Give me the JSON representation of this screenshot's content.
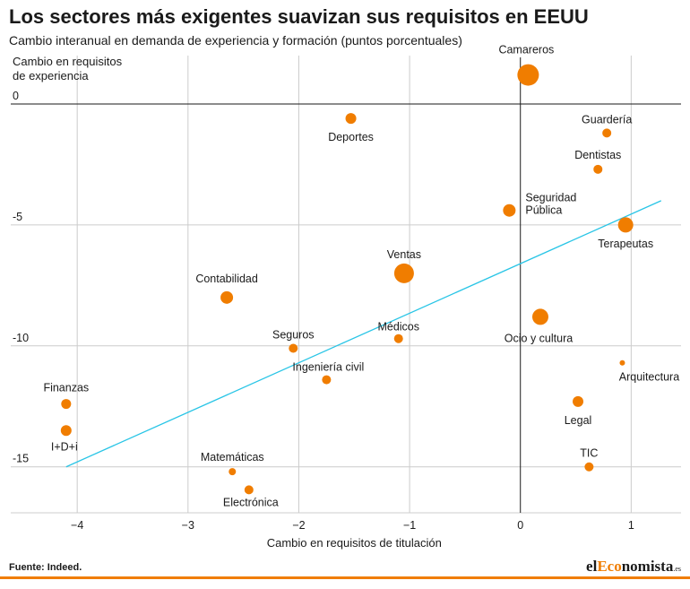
{
  "header": {
    "title": "Los sectores más exigentes suavizan sus requisitos en EEUU",
    "subtitle": "Cambio interanual en demanda de experiencia y formación (puntos porcentuales)"
  },
  "footer": {
    "source": "Fuente: Indeed.",
    "brand_pre": "el",
    "brand_accent": "Eco",
    "brand_post": "nomista",
    "brand_suffix": ".es"
  },
  "colors": {
    "points": "#f07d00",
    "trend": "#29c5e6",
    "axis": "#1a1a1a",
    "grid": "#cccccc"
  },
  "chart_data": {
    "type": "scatter",
    "title": "Los sectores más exigentes suavizan sus requisitos en EEUU",
    "subtitle": "Cambio interanual en demanda de experiencia y formación (puntos porcentuales)",
    "xlabel": "Cambio en requisitos de titulación",
    "ylabel_lines": [
      "Cambio en requisitos",
      "de experiencia"
    ],
    "xlim": [
      -4.6,
      1.45
    ],
    "ylim": [
      -16.9,
      2.0
    ],
    "x_ticks": [
      -4,
      -3,
      -2,
      -1,
      0,
      1
    ],
    "y_ticks": [
      0,
      -5,
      -10,
      -15
    ],
    "grid": true,
    "points": [
      {
        "label": "Camareros",
        "x": 0.07,
        "y": 1.2,
        "size": 12
      },
      {
        "label": "Deportes",
        "x": -1.53,
        "y": -0.6,
        "size": 6
      },
      {
        "label": "Guardería",
        "x": 0.78,
        "y": -1.2,
        "size": 5
      },
      {
        "label": "Dentistas",
        "x": 0.7,
        "y": -2.7,
        "size": 5
      },
      {
        "label": "Seguridad Pública",
        "x": -0.1,
        "y": -4.4,
        "size": 7
      },
      {
        "label": "Terapeutas",
        "x": 0.95,
        "y": -5.0,
        "size": 8.5
      },
      {
        "label": "Contabilidad",
        "x": -2.65,
        "y": -8.0,
        "size": 7
      },
      {
        "label": "Ventas",
        "x": -1.05,
        "y": -7.0,
        "size": 11
      },
      {
        "label": "Ocio y cultura",
        "x": 0.18,
        "y": -8.8,
        "size": 9
      },
      {
        "label": "Médicos",
        "x": -1.1,
        "y": -9.7,
        "size": 5
      },
      {
        "label": "Seguros",
        "x": -2.05,
        "y": -10.1,
        "size": 5
      },
      {
        "label": "Ingeniería civil",
        "x": -1.75,
        "y": -11.4,
        "size": 5
      },
      {
        "label": "Arquitectura",
        "x": 0.92,
        "y": -10.7,
        "size": 3
      },
      {
        "label": "Finanzas",
        "x": -4.1,
        "y": -12.4,
        "size": 5.5
      },
      {
        "label": "Legal",
        "x": 0.52,
        "y": -12.3,
        "size": 6
      },
      {
        "label": "I+D+i",
        "x": -4.1,
        "y": -13.5,
        "size": 6
      },
      {
        "label": "Matemáticas",
        "x": -2.6,
        "y": -15.2,
        "size": 4
      },
      {
        "label": "TIC",
        "x": 0.62,
        "y": -15.0,
        "size": 5
      },
      {
        "label": "Electrónica",
        "x": -2.45,
        "y": -15.95,
        "size": 5
      }
    ],
    "trendline": {
      "x": [
        -4.1,
        1.27
      ],
      "y": [
        -15.0,
        -4.0
      ]
    }
  }
}
